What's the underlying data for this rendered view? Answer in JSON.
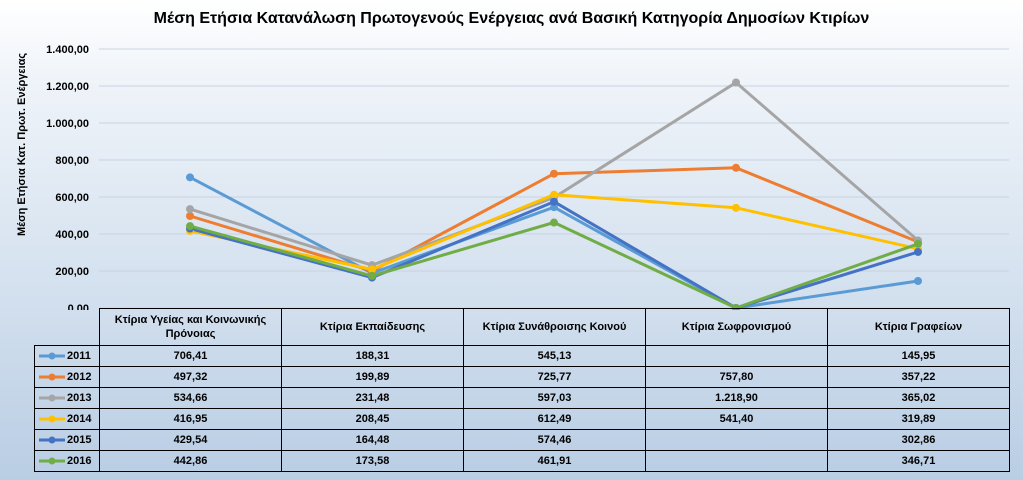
{
  "chart_data": {
    "type": "line",
    "title": "Μέση Ετήσια Κατανάλωση Πρωτογενούς Ενέργειας ανά Βασική Κατηγορία Δημοσίων Κτιρίων",
    "ylabel": "Μέση Ετήσια Κατ.  Πρωτ. Ενέργειας",
    "xlabel": "",
    "ylim": [
      0,
      1400
    ],
    "yticks": [
      "0,00",
      "200,00",
      "400,00",
      "600,00",
      "800,00",
      "1.000,00",
      "1.200,00",
      "1.400,00"
    ],
    "grid": true,
    "legend": "data-table",
    "categories": [
      "Κτίρια Υγείας και Κοινωνικής Πρόνοιας",
      "Κτίρια Εκπαίδευσης",
      "Κτίρια Συνάθροισης Κοινού",
      "Κτίρια Σωφρονισμού",
      "Κτίρια Γραφείων"
    ],
    "series": [
      {
        "name": "2011",
        "color": "#5b9bd5",
        "values": [
          706.41,
          188.31,
          545.13,
          0,
          145.95
        ],
        "labels": [
          "706,41",
          "188,31",
          "545,13",
          "",
          "145,95"
        ]
      },
      {
        "name": "2012",
        "color": "#ed7d31",
        "values": [
          497.32,
          199.89,
          725.77,
          757.8,
          357.22
        ],
        "labels": [
          "497,32",
          "199,89",
          "725,77",
          "757,80",
          "357,22"
        ]
      },
      {
        "name": "2013",
        "color": "#a5a5a5",
        "values": [
          534.66,
          231.48,
          597.03,
          1218.9,
          365.02
        ],
        "labels": [
          "534,66",
          "231,48",
          "597,03",
          "1.218,90",
          "365,02"
        ]
      },
      {
        "name": "2014",
        "color": "#ffc000",
        "values": [
          416.95,
          208.45,
          612.49,
          541.4,
          319.89
        ],
        "labels": [
          "416,95",
          "208,45",
          "612,49",
          "541,40",
          "319,89"
        ]
      },
      {
        "name": "2015",
        "color": "#4472c4",
        "values": [
          429.54,
          164.48,
          574.46,
          0,
          302.86
        ],
        "labels": [
          "429,54",
          "164,48",
          "574,46",
          "",
          "302,86"
        ]
      },
      {
        "name": "2016",
        "color": "#70ad47",
        "values": [
          442.86,
          173.58,
          461.91,
          0,
          346.71
        ],
        "labels": [
          "442,86",
          "173,58",
          "461,91",
          "",
          "346,71"
        ]
      }
    ]
  }
}
